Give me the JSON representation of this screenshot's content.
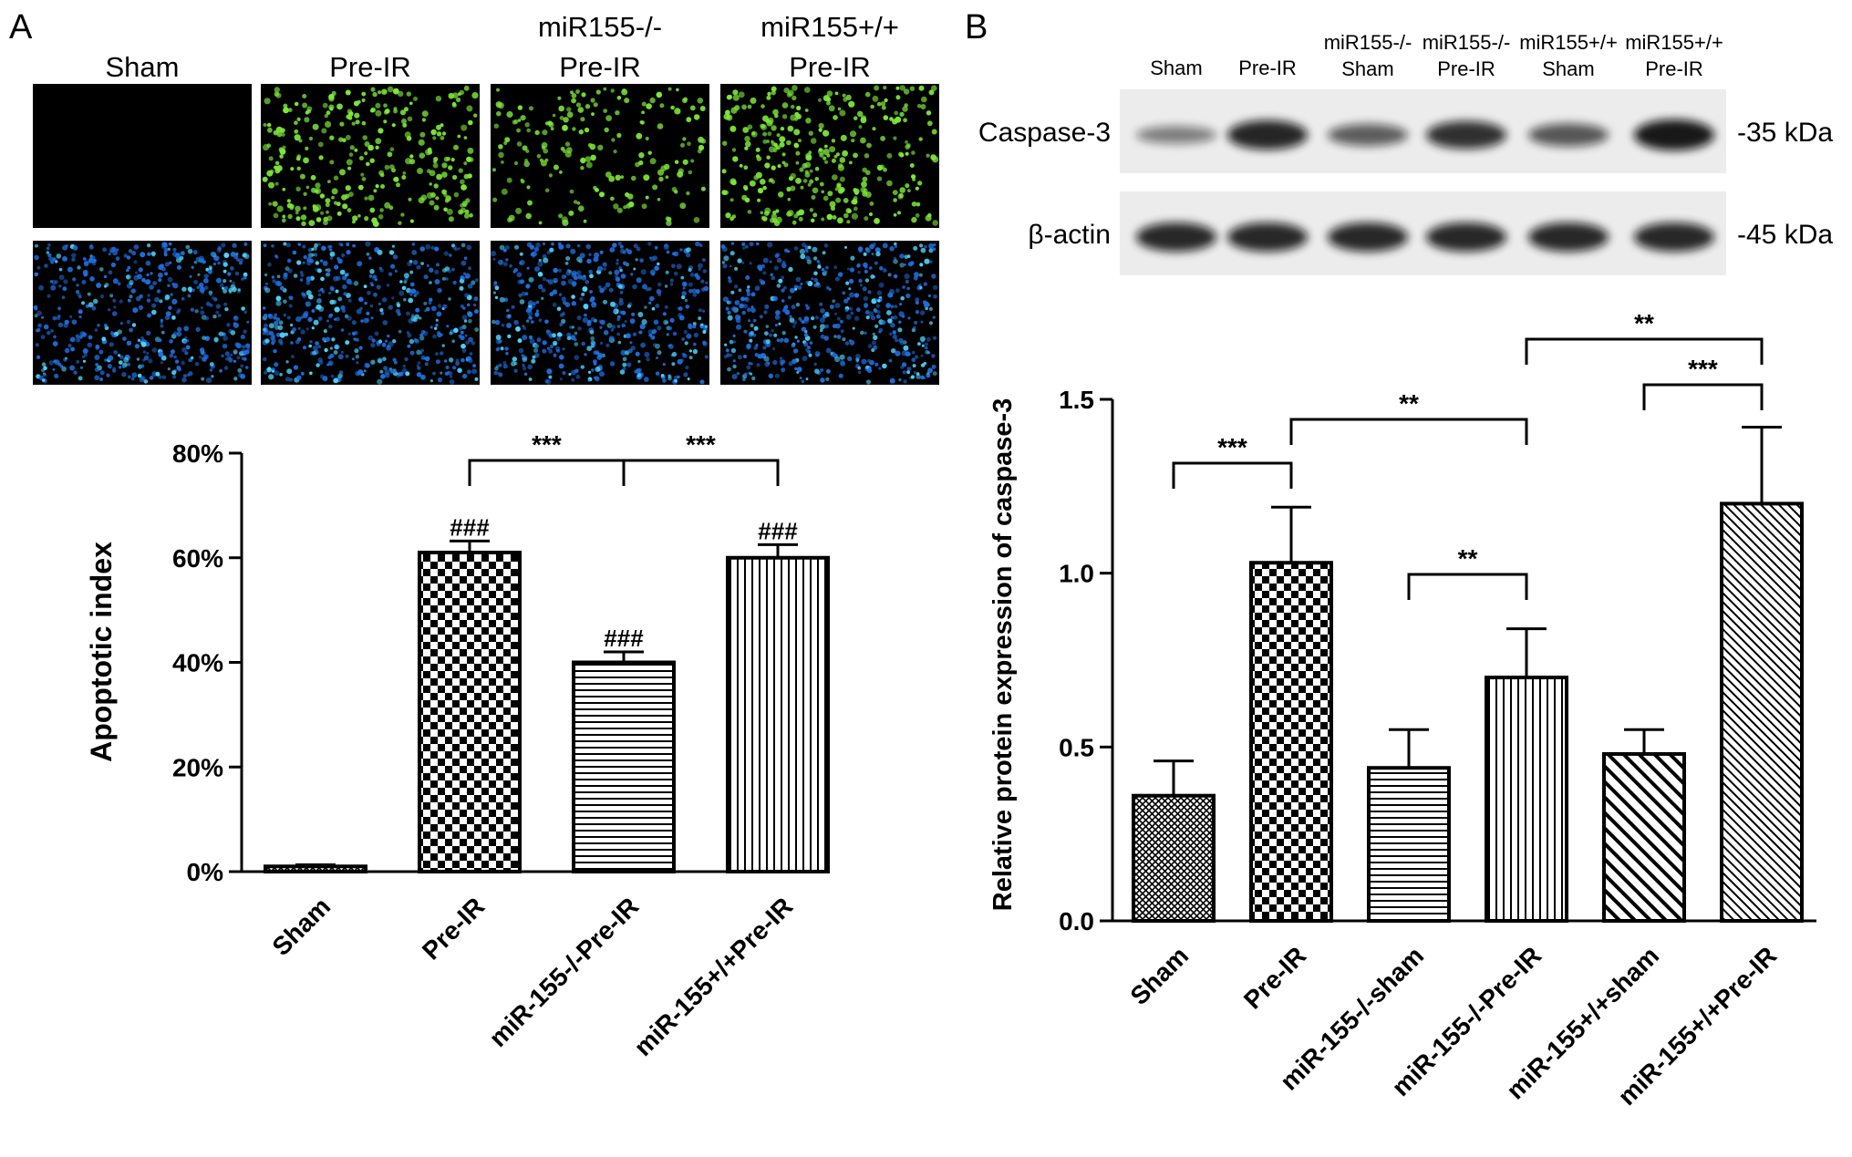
{
  "panel_a": {
    "letter": "A",
    "micrograph_labels": [
      {
        "lines": [
          "Sham"
        ]
      },
      {
        "lines": [
          "Pre-IR"
        ]
      },
      {
        "lines": [
          "miR155-/-",
          "Pre-IR"
        ]
      },
      {
        "lines": [
          "miR155+/+",
          "Pre-IR"
        ]
      }
    ],
    "colors": {
      "tunel": "#7ee83a",
      "dapi": "#1f6fe0",
      "background": "#000000"
    }
  },
  "panel_b": {
    "letter": "B",
    "blot_lane_labels": [
      {
        "lines": [
          "Sham"
        ]
      },
      {
        "lines": [
          "Pre-IR"
        ]
      },
      {
        "lines": [
          "miR155-/-",
          "Sham"
        ]
      },
      {
        "lines": [
          "miR155-/-",
          "Pre-IR"
        ]
      },
      {
        "lines": [
          "miR155+/+",
          "Sham"
        ]
      },
      {
        "lines": [
          "miR155+/+",
          "Pre-IR"
        ]
      }
    ],
    "blot_rows": [
      {
        "protein": "Caspase-3",
        "size": "-35 kDa",
        "intensities": [
          0.35,
          0.92,
          0.55,
          0.85,
          0.6,
          1.0
        ]
      },
      {
        "protein": "β-actin",
        "size": "-45 kDa",
        "intensities": [
          0.9,
          0.9,
          0.9,
          0.9,
          0.9,
          0.9
        ]
      }
    ]
  },
  "chart_data": [
    {
      "type": "bar",
      "panel": "A",
      "title": "",
      "xlabel": "",
      "ylabel": "Apoptotic index",
      "categories": [
        "Sham",
        "Pre-IR",
        "miR-155-/-Pre-IR",
        "miR-155+/+Pre-IR"
      ],
      "values": [
        0.01,
        0.61,
        0.4,
        0.6
      ],
      "errors": [
        0.003,
        0.022,
        0.02,
        0.025
      ],
      "patterns": [
        "crosshatch",
        "checker",
        "horizontal",
        "vertical"
      ],
      "point_labels": [
        "",
        "###",
        "###",
        "###"
      ],
      "ylim": [
        0,
        0.8
      ],
      "yticks": [
        0,
        0.2,
        0.4,
        0.6,
        0.8
      ],
      "ytick_labels": [
        "0%",
        "20%",
        "40%",
        "60%",
        "80%"
      ],
      "grid": false,
      "legend": "none",
      "brackets": [
        {
          "from": 1,
          "to": 2,
          "label": "***"
        },
        {
          "from": 2,
          "to": 3,
          "label": "***"
        }
      ]
    },
    {
      "type": "bar",
      "panel": "B",
      "title": "",
      "xlabel": "",
      "ylabel": "Relative protein expression of caspase-3",
      "categories": [
        "Sham",
        "Pre-IR",
        "miR-155-/-sham",
        "miR-155-/-Pre-IR",
        "miR-155+/+sham",
        "miR-155+/+Pre-IR"
      ],
      "values": [
        0.36,
        1.03,
        0.44,
        0.7,
        0.48,
        1.2
      ],
      "errors": [
        0.1,
        0.16,
        0.11,
        0.14,
        0.07,
        0.22
      ],
      "patterns": [
        "crosshatch",
        "checker",
        "horizontal",
        "vertical",
        "diagonal",
        "diagonal-fine"
      ],
      "ylim": [
        0,
        1.5
      ],
      "yticks": [
        0,
        0.5,
        1.0,
        1.5
      ],
      "ytick_labels": [
        "0.0",
        "0.5",
        "1.0",
        "1.5"
      ],
      "grid": false,
      "legend": "none",
      "brackets": [
        {
          "from": 0,
          "to": 1,
          "label": "***"
        },
        {
          "from": 1,
          "to": 3,
          "label": "**"
        },
        {
          "from": 2,
          "to": 3,
          "label": "**"
        },
        {
          "from": 4,
          "to": 5,
          "label": "***"
        },
        {
          "from": 3,
          "to": 5,
          "label": "**"
        }
      ]
    }
  ]
}
